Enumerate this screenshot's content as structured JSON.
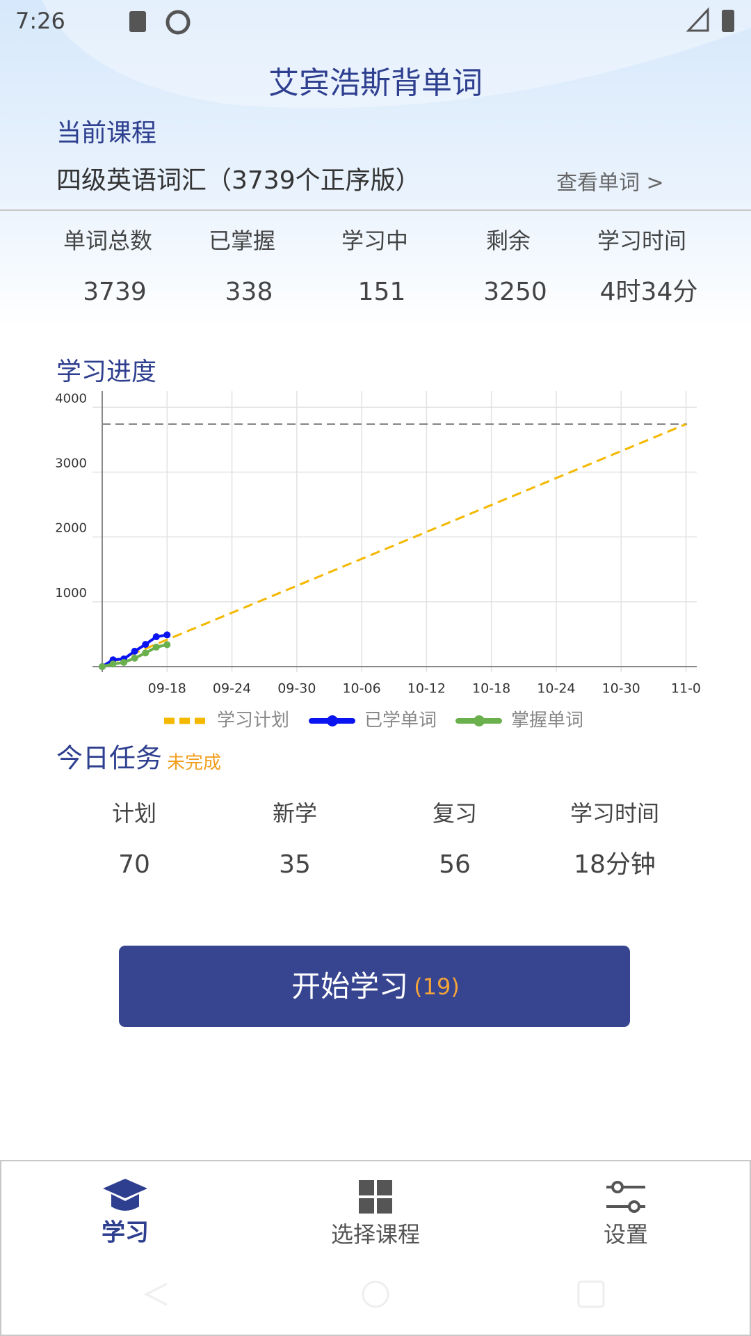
{
  "status_bar": {
    "time": "7:26"
  },
  "header": {
    "title": "艾宾浩斯背单词",
    "course_label": "当前课程",
    "course_name": "四级英语词汇（3739个正序版）",
    "view_words": "查看单词 >"
  },
  "stats": [
    {
      "label": "单词总数",
      "value": 3739
    },
    {
      "label": "已掌握",
      "value": 338
    },
    {
      "label": "学习中",
      "value": 151
    },
    {
      "label": "剩余",
      "value": 3250
    },
    {
      "label": "学习时间",
      "value": "4时34分"
    }
  ],
  "chart_data": {
    "type": "line",
    "title": "学习进度",
    "xlim": [
      "09-12",
      "11-06"
    ],
    "xticks": [
      "09-18",
      "09-24",
      "09-30",
      "10-06",
      "10-12",
      "10-18",
      "10-24",
      "10-30",
      {
        "value": "11-05",
        "label": "11-0"
      }
    ],
    "ylim": [
      0,
      4250
    ],
    "yticks": [
      1000,
      2000,
      3000,
      4000
    ],
    "grid": true,
    "legend": "bottom",
    "target_line": 3739,
    "target_color": "#888888",
    "series": [
      {
        "name": "学习计划",
        "color": "#f5b800",
        "style": "dashed",
        "x": [
          "09-12",
          "11-05"
        ],
        "values": [
          0,
          3739
        ]
      },
      {
        "name": "已学单词",
        "color": "#0a14f0",
        "style": "markers",
        "x": [
          "09-12",
          "09-13",
          "09-14",
          "09-15",
          "09-16",
          "09-17",
          "09-18"
        ],
        "values": [
          0,
          105,
          118,
          237,
          342,
          460,
          489
        ]
      },
      {
        "name": "掌握单词",
        "color": "#6ab04c",
        "style": "markers",
        "x": [
          "09-12",
          "09-13",
          "09-14",
          "09-15",
          "09-16",
          "09-17",
          "09-18"
        ],
        "values": [
          0,
          40,
          65,
          130,
          210,
          300,
          338
        ]
      }
    ]
  },
  "today": {
    "title": "今日任务",
    "status": "未完成",
    "items": [
      {
        "label": "计划",
        "value": 70
      },
      {
        "label": "新学",
        "value": 35
      },
      {
        "label": "复习",
        "value": 56
      },
      {
        "label": "学习时间",
        "value": "18分钟"
      }
    ]
  },
  "start_button": {
    "label": "开始学习",
    "count": "(19)"
  },
  "nav": [
    "学习",
    "选择课程",
    "设置"
  ]
}
